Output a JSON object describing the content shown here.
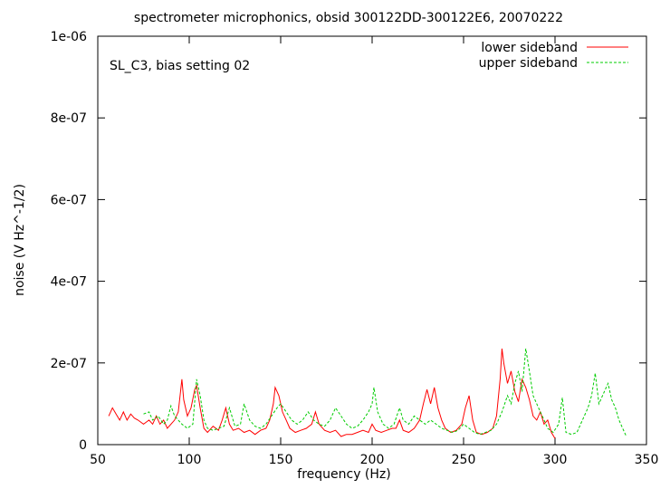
{
  "chart_data": {
    "type": "line",
    "title": "spectrometer microphonics, obsid 300122DD-300122E6, 20070222",
    "annotation": "SL_C3, bias setting 02",
    "xlabel": "frequency (Hz)",
    "ylabel": "noise (V Hz^-1/2)",
    "xlim": [
      50,
      350
    ],
    "ylim": [
      0,
      1e-06
    ],
    "x_ticks": [
      50,
      100,
      150,
      200,
      250,
      300,
      350
    ],
    "x_tick_labels": [
      "50",
      "100",
      "150",
      "200",
      "250",
      "300",
      "350"
    ],
    "y_ticks": [
      0,
      2e-07,
      4e-07,
      6e-07,
      8e-07,
      1e-06
    ],
    "y_tick_labels": [
      "0",
      "2e-07",
      "4e-07",
      "6e-07",
      "8e-07",
      "1e-06"
    ],
    "legend_position": "top-right",
    "series": [
      {
        "name": "lower sideband",
        "color": "#ff0000",
        "dash": "solid",
        "points": [
          [
            56,
            7e-08
          ],
          [
            58,
            9e-08
          ],
          [
            60,
            7.5e-08
          ],
          [
            62,
            6e-08
          ],
          [
            64,
            8e-08
          ],
          [
            66,
            6e-08
          ],
          [
            68,
            7.5e-08
          ],
          [
            70,
            6.5e-08
          ],
          [
            72,
            6e-08
          ],
          [
            75,
            5e-08
          ],
          [
            78,
            6e-08
          ],
          [
            80,
            5e-08
          ],
          [
            82,
            7e-08
          ],
          [
            84,
            5e-08
          ],
          [
            86,
            6e-08
          ],
          [
            88,
            4e-08
          ],
          [
            90,
            5e-08
          ],
          [
            92,
            6e-08
          ],
          [
            94,
            8e-08
          ],
          [
            96,
            1.6e-07
          ],
          [
            97,
            1.1e-07
          ],
          [
            99,
            7e-08
          ],
          [
            101,
            9e-08
          ],
          [
            103,
            1.35e-07
          ],
          [
            104,
            1.45e-07
          ],
          [
            106,
            9e-08
          ],
          [
            108,
            4e-08
          ],
          [
            110,
            3e-08
          ],
          [
            113,
            4.5e-08
          ],
          [
            116,
            3.5e-08
          ],
          [
            118,
            6e-08
          ],
          [
            120,
            9e-08
          ],
          [
            122,
            5e-08
          ],
          [
            124,
            3.5e-08
          ],
          [
            127,
            4e-08
          ],
          [
            130,
            3e-08
          ],
          [
            133,
            3.5e-08
          ],
          [
            136,
            2.5e-08
          ],
          [
            139,
            3.5e-08
          ],
          [
            142,
            4e-08
          ],
          [
            144,
            6e-08
          ],
          [
            146,
            1e-07
          ],
          [
            147,
            1.4e-07
          ],
          [
            149,
            1.2e-07
          ],
          [
            151,
            8e-08
          ],
          [
            153,
            6e-08
          ],
          [
            155,
            4e-08
          ],
          [
            158,
            3e-08
          ],
          [
            161,
            3.5e-08
          ],
          [
            164,
            4e-08
          ],
          [
            167,
            5e-08
          ],
          [
            169,
            8e-08
          ],
          [
            171,
            5e-08
          ],
          [
            174,
            3.5e-08
          ],
          [
            177,
            3e-08
          ],
          [
            180,
            3.5e-08
          ],
          [
            183,
            2e-08
          ],
          [
            186,
            2.5e-08
          ],
          [
            189,
            2.5e-08
          ],
          [
            192,
            3e-08
          ],
          [
            195,
            3.5e-08
          ],
          [
            198,
            3e-08
          ],
          [
            200,
            5e-08
          ],
          [
            202,
            3.5e-08
          ],
          [
            205,
            3e-08
          ],
          [
            208,
            3.5e-08
          ],
          [
            211,
            4e-08
          ],
          [
            213,
            4e-08
          ],
          [
            215,
            6e-08
          ],
          [
            217,
            3.5e-08
          ],
          [
            220,
            3e-08
          ],
          [
            223,
            4e-08
          ],
          [
            226,
            6e-08
          ],
          [
            228,
            1e-07
          ],
          [
            230,
            1.35e-07
          ],
          [
            232,
            1e-07
          ],
          [
            234,
            1.4e-07
          ],
          [
            236,
            9e-08
          ],
          [
            238,
            6e-08
          ],
          [
            240,
            4e-08
          ],
          [
            243,
            3e-08
          ],
          [
            246,
            3.5e-08
          ],
          [
            249,
            5e-08
          ],
          [
            251,
            9e-08
          ],
          [
            253,
            1.2e-07
          ],
          [
            255,
            6e-08
          ],
          [
            257,
            3e-08
          ],
          [
            260,
            2.5e-08
          ],
          [
            263,
            3e-08
          ],
          [
            266,
            4e-08
          ],
          [
            268,
            7e-08
          ],
          [
            270,
            1.6e-07
          ],
          [
            271,
            2.35e-07
          ],
          [
            272,
            2e-07
          ],
          [
            274,
            1.5e-07
          ],
          [
            276,
            1.8e-07
          ],
          [
            278,
            1.3e-07
          ],
          [
            280,
            1.05e-07
          ],
          [
            282,
            1.6e-07
          ],
          [
            284,
            1.4e-07
          ],
          [
            286,
            1.1e-07
          ],
          [
            288,
            7e-08
          ],
          [
            290,
            6e-08
          ],
          [
            292,
            8e-08
          ],
          [
            294,
            5e-08
          ],
          [
            296,
            6e-08
          ],
          [
            298,
            3e-08
          ],
          [
            300,
            1.5e-08
          ]
        ]
      },
      {
        "name": "upper sideband",
        "color": "#00cc00",
        "dash": "dashed",
        "points": [
          [
            75,
            7.5e-08
          ],
          [
            78,
            8e-08
          ],
          [
            80,
            6e-08
          ],
          [
            83,
            7e-08
          ],
          [
            86,
            5e-08
          ],
          [
            88,
            6e-08
          ],
          [
            90,
            9.5e-08
          ],
          [
            92,
            7e-08
          ],
          [
            94,
            6e-08
          ],
          [
            96,
            5e-08
          ],
          [
            99,
            4e-08
          ],
          [
            102,
            5e-08
          ],
          [
            104,
            1.6e-07
          ],
          [
            106,
            1.2e-07
          ],
          [
            108,
            6e-08
          ],
          [
            110,
            4e-08
          ],
          [
            113,
            3.5e-08
          ],
          [
            116,
            4e-08
          ],
          [
            119,
            4.5e-08
          ],
          [
            122,
            9e-08
          ],
          [
            125,
            4.5e-08
          ],
          [
            128,
            5e-08
          ],
          [
            130,
            1e-07
          ],
          [
            133,
            6e-08
          ],
          [
            136,
            4.5e-08
          ],
          [
            139,
            4e-08
          ],
          [
            142,
            5e-08
          ],
          [
            145,
            7e-08
          ],
          [
            148,
            9e-08
          ],
          [
            150,
            1e-07
          ],
          [
            153,
            8e-08
          ],
          [
            156,
            6e-08
          ],
          [
            159,
            5e-08
          ],
          [
            162,
            6e-08
          ],
          [
            165,
            8e-08
          ],
          [
            168,
            6e-08
          ],
          [
            171,
            5e-08
          ],
          [
            174,
            4.5e-08
          ],
          [
            177,
            6e-08
          ],
          [
            180,
            9e-08
          ],
          [
            183,
            7e-08
          ],
          [
            186,
            5e-08
          ],
          [
            189,
            4e-08
          ],
          [
            192,
            4.5e-08
          ],
          [
            195,
            6e-08
          ],
          [
            198,
            8e-08
          ],
          [
            200,
            1e-07
          ],
          [
            201,
            1.4e-07
          ],
          [
            203,
            8e-08
          ],
          [
            206,
            5e-08
          ],
          [
            209,
            4e-08
          ],
          [
            212,
            5e-08
          ],
          [
            215,
            9e-08
          ],
          [
            217,
            6e-08
          ],
          [
            220,
            5e-08
          ],
          [
            223,
            7e-08
          ],
          [
            226,
            6e-08
          ],
          [
            229,
            5e-08
          ],
          [
            232,
            6e-08
          ],
          [
            235,
            5e-08
          ],
          [
            238,
            4e-08
          ],
          [
            241,
            3.5e-08
          ],
          [
            244,
            3e-08
          ],
          [
            247,
            3.5e-08
          ],
          [
            250,
            5e-08
          ],
          [
            253,
            4e-08
          ],
          [
            256,
            3e-08
          ],
          [
            259,
            2.5e-08
          ],
          [
            262,
            3e-08
          ],
          [
            265,
            3.5e-08
          ],
          [
            268,
            5e-08
          ],
          [
            271,
            8e-08
          ],
          [
            274,
            1.2e-07
          ],
          [
            276,
            1e-07
          ],
          [
            278,
            1.5e-07
          ],
          [
            280,
            1.8e-07
          ],
          [
            282,
            1.3e-07
          ],
          [
            284,
            2.35e-07
          ],
          [
            286,
            1.8e-07
          ],
          [
            288,
            1.2e-07
          ],
          [
            290,
            1e-07
          ],
          [
            293,
            7e-08
          ],
          [
            296,
            4e-08
          ],
          [
            299,
            3e-08
          ],
          [
            302,
            5e-08
          ],
          [
            304,
            1.15e-07
          ],
          [
            306,
            3e-08
          ],
          [
            309,
            2.5e-08
          ],
          [
            312,
            3e-08
          ],
          [
            315,
            6e-08
          ],
          [
            318,
            9e-08
          ],
          [
            320,
            1.2e-07
          ],
          [
            322,
            1.75e-07
          ],
          [
            324,
            1e-07
          ],
          [
            327,
            1.3e-07
          ],
          [
            329,
            1.5e-07
          ],
          [
            331,
            1.1e-07
          ],
          [
            333,
            9e-08
          ],
          [
            335,
            6e-08
          ],
          [
            337,
            4e-08
          ],
          [
            339,
            2e-08
          ]
        ]
      }
    ]
  }
}
